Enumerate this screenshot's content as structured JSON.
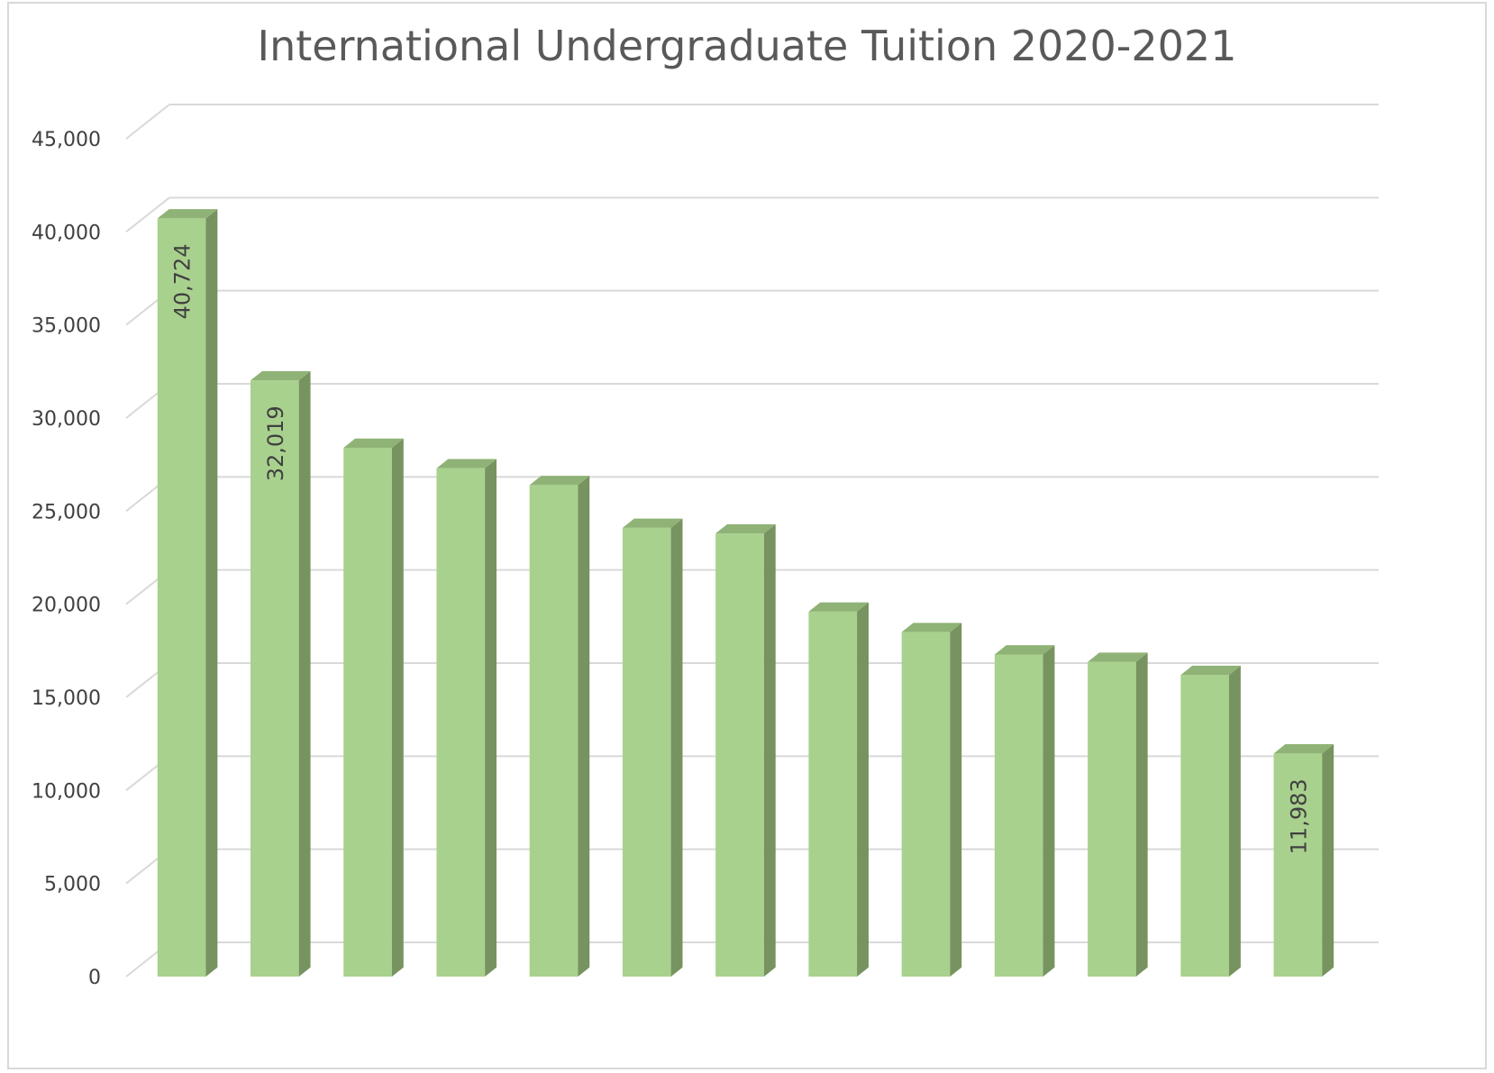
{
  "chart_data": {
    "type": "bar",
    "title": "International Undergraduate Tuition 2020-2021",
    "xlabel": "",
    "ylabel": "",
    "ylim": [
      0,
      45000
    ],
    "yticks": [
      "0",
      "5,000",
      "10,000",
      "15,000",
      "20,000",
      "25,000",
      "30,000",
      "35,000",
      "40,000",
      "45,000"
    ],
    "grid": true,
    "categories": [
      "",
      "",
      "",
      "",
      "",
      "",
      "",
      "",
      "",
      "",
      "",
      "",
      ""
    ],
    "values": [
      40724,
      32019,
      28400,
      27300,
      26400,
      24100,
      23800,
      19600,
      18500,
      17300,
      16900,
      16200,
      11983
    ],
    "data_labels": [
      "40,724",
      "32,019",
      "",
      "",
      "",
      "",
      "",
      "",
      "",
      "",
      "",
      "",
      "11,983"
    ],
    "colors": {
      "bar_front": "#a9d18e",
      "bar_side": "#77935f",
      "bar_top": "#8fb376",
      "grid": "#d9d9d9",
      "text": "#404040",
      "title": "#595959"
    }
  }
}
